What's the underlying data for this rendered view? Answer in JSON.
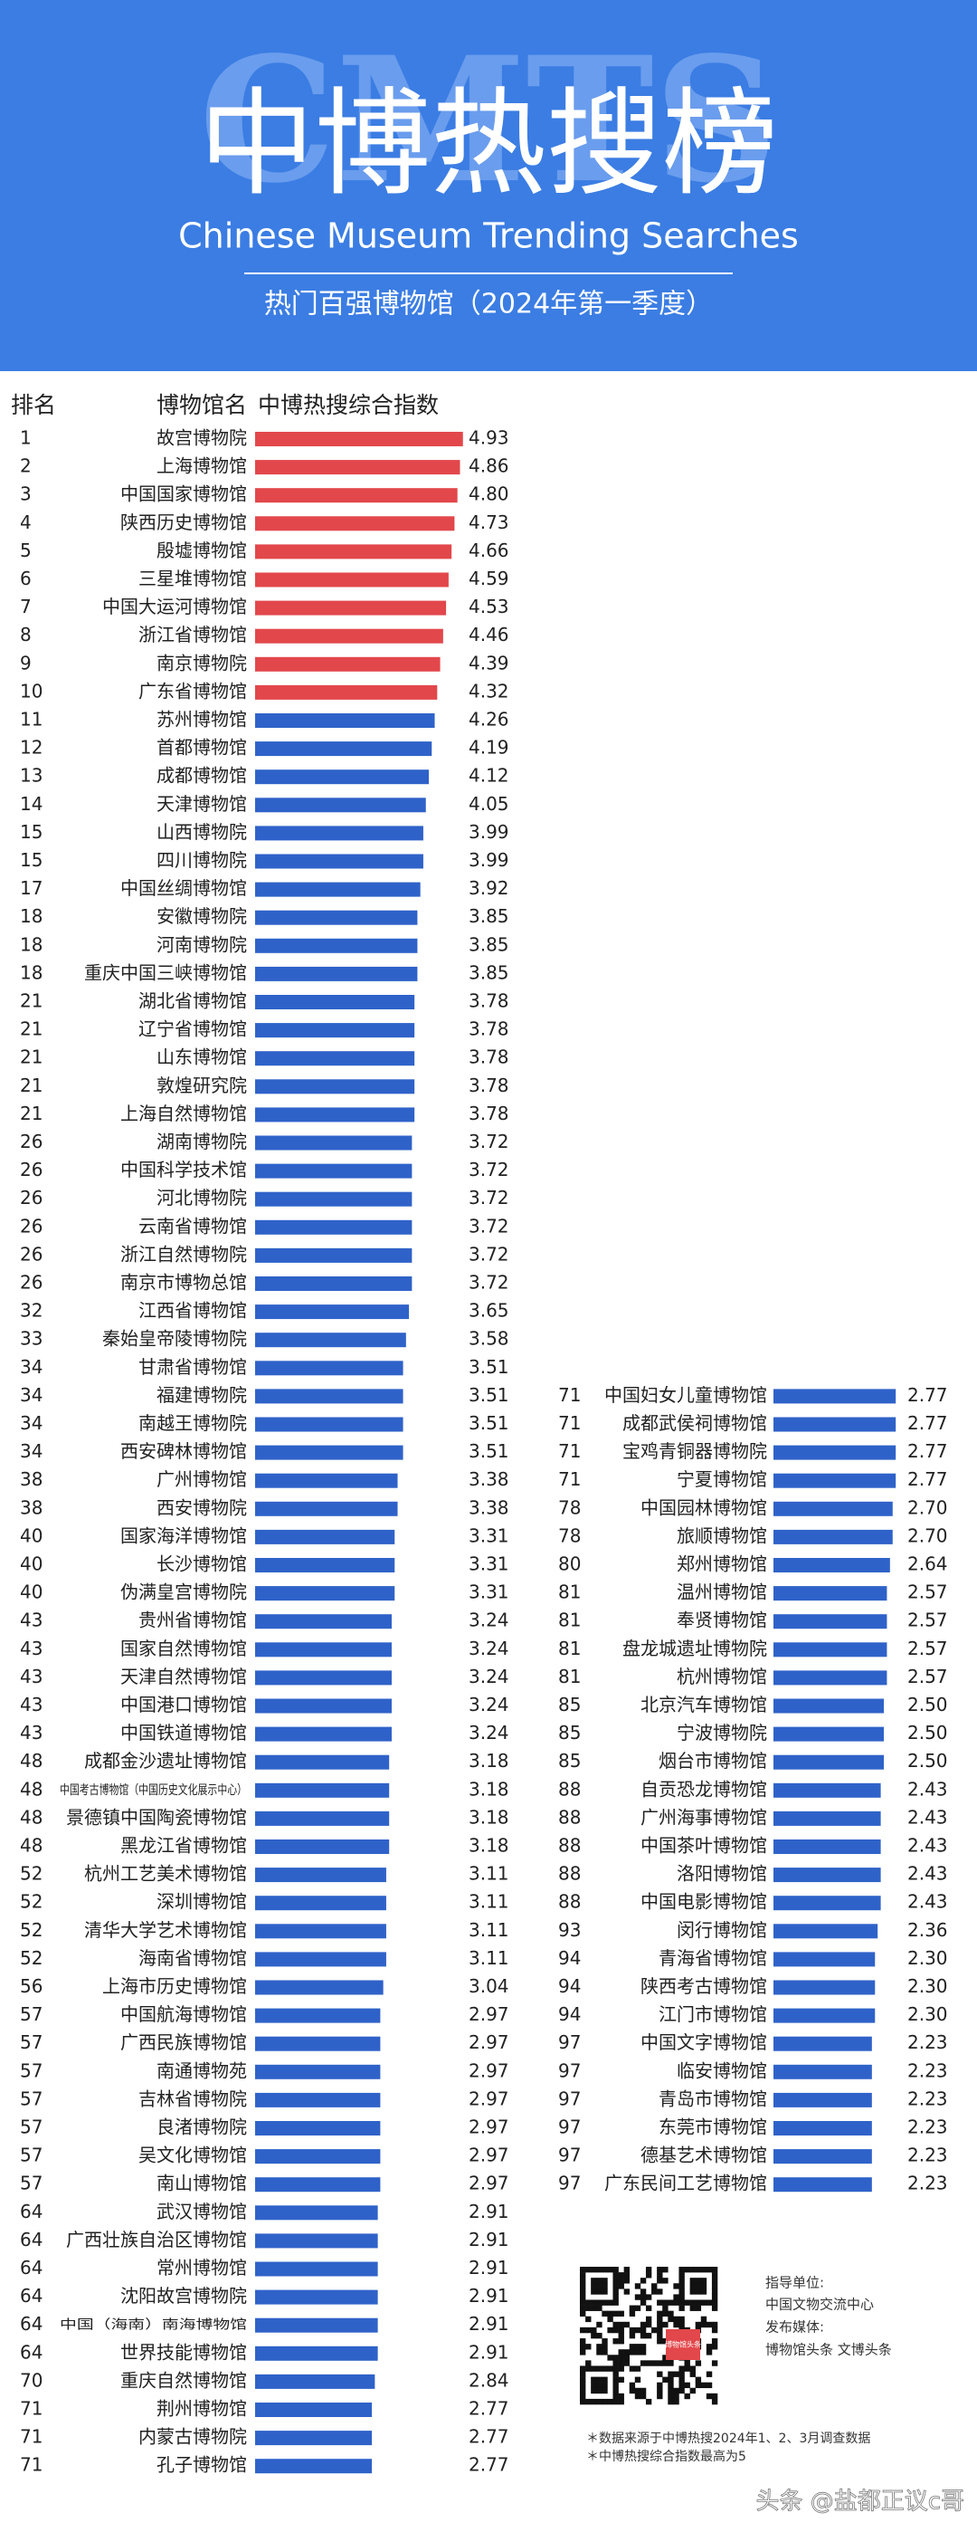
{
  "header": {
    "watermark": "CMTS",
    "title": "中博热搜榜",
    "subtitle": "Chinese Museum Trending Searches",
    "period": "热门百强博物馆（2024年第一季度）"
  },
  "column_headers": [
    "排名",
    "博物馆名",
    "中博热搜综合指数"
  ],
  "chart_data": [
    {
      "type": "bar",
      "xlim": [
        0,
        5
      ],
      "ranks": [
        1,
        2,
        3,
        4,
        5,
        6,
        7,
        8,
        9,
        10,
        11,
        12,
        13,
        14,
        15,
        15,
        17,
        18,
        18,
        18,
        21,
        21,
        21,
        21,
        21,
        26,
        26,
        26,
        26,
        26,
        26,
        32,
        33,
        34,
        34,
        34,
        34,
        38,
        38,
        40,
        40,
        40,
        43,
        43,
        43,
        43,
        43,
        48,
        48,
        48,
        48,
        52,
        52,
        52,
        52,
        56,
        57,
        57,
        57,
        57,
        57,
        57,
        57,
        64,
        64,
        64,
        64,
        64,
        64,
        70,
        71,
        71,
        71
      ],
      "categories": [
        "故宫博物院",
        "上海博物馆",
        "中国国家博物馆",
        "陕西历史博物馆",
        "殷墟博物馆",
        "三星堆博物馆",
        "中国大运河博物馆",
        "浙江省博物馆",
        "南京博物院",
        "广东省博物馆",
        "苏州博物馆",
        "首都博物馆",
        "成都博物馆",
        "天津博物馆",
        "山西博物院",
        "四川博物院",
        "中国丝绸博物馆",
        "安徽博物院",
        "河南博物院",
        "重庆中国三峡博物馆",
        "湖北省博物馆",
        "辽宁省博物馆",
        "山东博物馆",
        "敦煌研究院",
        "上海自然博物馆",
        "湖南博物院",
        "中国科学技术馆",
        "河北博物院",
        "云南省博物馆",
        "浙江自然博物院",
        "南京市博物总馆",
        "江西省博物馆",
        "秦始皇帝陵博物院",
        "甘肃省博物馆",
        "福建博物院",
        "南越王博物院",
        "西安碑林博物馆",
        "广州博物馆",
        "西安博物院",
        "国家海洋博物馆",
        "长沙博物馆",
        "伪满皇宫博物院",
        "贵州省博物馆",
        "国家自然博物馆",
        "天津自然博物馆",
        "中国港口博物馆",
        "中国铁道博物馆",
        "成都金沙遗址博物馆",
        "中国考古博物馆（中国历史文化展示中心）",
        "景德镇中国陶瓷博物馆",
        "黑龙江省博物馆",
        "杭州工艺美术博物馆",
        "深圳博物馆",
        "清华大学艺术博物馆",
        "海南省博物馆",
        "上海市历史博物馆",
        "中国航海博物馆",
        "广西民族博物馆",
        "南通博物苑",
        "吉林省博物院",
        "良渚博物院",
        "吴文化博物馆",
        "南山博物馆",
        "武汉博物馆",
        "广西壮族自治区博物馆",
        "常州博物馆",
        "沈阳故宫博物院",
        "中国（海南）南海博物馆",
        "世界技能博物馆",
        "重庆自然博物馆",
        "荆州博物馆",
        "内蒙古博物院",
        "孔子博物馆"
      ],
      "values": [
        4.93,
        4.86,
        4.8,
        4.73,
        4.66,
        4.59,
        4.53,
        4.46,
        4.39,
        4.32,
        4.26,
        4.19,
        4.12,
        4.05,
        3.99,
        3.99,
        3.92,
        3.85,
        3.85,
        3.85,
        3.78,
        3.78,
        3.78,
        3.78,
        3.78,
        3.72,
        3.72,
        3.72,
        3.72,
        3.72,
        3.72,
        3.65,
        3.58,
        3.51,
        3.51,
        3.51,
        3.51,
        3.38,
        3.38,
        3.31,
        3.31,
        3.31,
        3.24,
        3.24,
        3.24,
        3.24,
        3.24,
        3.18,
        3.18,
        3.18,
        3.18,
        3.11,
        3.11,
        3.11,
        3.11,
        3.04,
        2.97,
        2.97,
        2.97,
        2.97,
        2.97,
        2.97,
        2.97,
        2.91,
        2.91,
        2.91,
        2.91,
        2.91,
        2.91,
        2.84,
        2.77,
        2.77,
        2.77
      ],
      "value_labels": [
        "4.93",
        "4.86",
        "4.80",
        "4.73",
        "4.66",
        "4.59",
        "4.53",
        "4.46",
        "4.39",
        "4.32",
        "4.26",
        "4.19",
        "4.12",
        "4.05",
        "3.99",
        "3.99",
        "3.92",
        "3.85",
        "3.85",
        "3.85",
        "3.78",
        "3.78",
        "3.78",
        "3.78",
        "3.78",
        "3.72",
        "3.72",
        "3.72",
        "3.72",
        "3.72",
        "3.72",
        "3.65",
        "3.58",
        "3.51",
        "3.51",
        "3.51",
        "3.51",
        "3.38",
        "3.38",
        "3.31",
        "3.31",
        "3.31",
        "3.24",
        "3.24",
        "3.24",
        "3.24",
        "3.24",
        "3.18",
        "3.18",
        "3.18",
        "3.18",
        "3.11",
        "3.11",
        "3.11",
        "3.11",
        "3.04",
        "2.97",
        "2.97",
        "2.97",
        "2.97",
        "2.97",
        "2.97",
        "2.97",
        "2.91",
        "2.91",
        "2.91",
        "2.91",
        "2.91",
        "2.91",
        "2.84",
        "2.77",
        "2.77",
        "2.77"
      ],
      "colors": [
        "#e2474b",
        "#e2474b",
        "#e2474b",
        "#e2474b",
        "#e2474b",
        "#e2474b",
        "#e2474b",
        "#e2474b",
        "#e2474b",
        "#e2474b",
        "#2f62c9",
        "#2f62c9",
        "#2f62c9",
        "#2f62c9",
        "#2f62c9",
        "#2f62c9",
        "#2f62c9",
        "#2f62c9",
        "#2f62c9",
        "#2f62c9",
        "#2f62c9",
        "#2f62c9",
        "#2f62c9",
        "#2f62c9",
        "#2f62c9",
        "#2f62c9",
        "#2f62c9",
        "#2f62c9",
        "#2f62c9",
        "#2f62c9",
        "#2f62c9",
        "#2f62c9",
        "#2f62c9",
        "#2f62c9",
        "#2f62c9",
        "#2f62c9",
        "#2f62c9",
        "#2f62c9",
        "#2f62c9",
        "#2f62c9",
        "#2f62c9",
        "#2f62c9",
        "#2f62c9",
        "#2f62c9",
        "#2f62c9",
        "#2f62c9",
        "#2f62c9",
        "#2f62c9",
        "#2f62c9",
        "#2f62c9",
        "#2f62c9",
        "#2f62c9",
        "#2f62c9",
        "#2f62c9",
        "#2f62c9",
        "#2f62c9",
        "#2f62c9",
        "#2f62c9",
        "#2f62c9",
        "#2f62c9",
        "#2f62c9",
        "#2f62c9",
        "#2f62c9",
        "#2f62c9",
        "#2f62c9",
        "#2f62c9",
        "#2f62c9",
        "#2f62c9",
        "#2f62c9",
        "#2f62c9",
        "#2f62c9",
        "#2f62c9",
        "#2f62c9"
      ]
    },
    {
      "type": "bar",
      "xlim": [
        0,
        5
      ],
      "ranks": [
        71,
        71,
        71,
        71,
        78,
        78,
        80,
        81,
        81,
        81,
        81,
        85,
        85,
        85,
        88,
        88,
        88,
        88,
        88,
        93,
        94,
        94,
        94,
        97,
        97,
        97,
        97,
        97,
        97
      ],
      "categories": [
        "中国妇女儿童博物馆",
        "成都武侯祠博物馆",
        "宝鸡青铜器博物院",
        "宁夏博物馆",
        "中国园林博物馆",
        "旅顺博物馆",
        "郑州博物馆",
        "温州博物馆",
        "奉贤博物馆",
        "盘龙城遗址博物院",
        "杭州博物馆",
        "北京汽车博物馆",
        "宁波博物院",
        "烟台市博物馆",
        "自贡恐龙博物馆",
        "广州海事博物馆",
        "中国茶叶博物馆",
        "洛阳博物馆",
        "中国电影博物馆",
        "闵行博物馆",
        "青海省博物馆",
        "陕西考古博物馆",
        "江门市博物馆",
        "中国文字博物馆",
        "临安博物馆",
        "青岛市博物馆",
        "东莞市博物馆",
        "德基艺术博物馆",
        "广东民间工艺博物馆"
      ],
      "values": [
        2.77,
        2.77,
        2.77,
        2.77,
        2.7,
        2.7,
        2.64,
        2.57,
        2.57,
        2.57,
        2.57,
        2.5,
        2.5,
        2.5,
        2.43,
        2.43,
        2.43,
        2.43,
        2.43,
        2.36,
        2.3,
        2.3,
        2.3,
        2.23,
        2.23,
        2.23,
        2.23,
        2.23,
        2.23
      ],
      "value_labels": [
        "2.77",
        "2.77",
        "2.77",
        "2.77",
        "2.70",
        "2.70",
        "2.64",
        "2.57",
        "2.57",
        "2.57",
        "2.57",
        "2.50",
        "2.50",
        "2.50",
        "2.43",
        "2.43",
        "2.43",
        "2.43",
        "2.43",
        "2.36",
        "2.30",
        "2.30",
        "2.30",
        "2.23",
        "2.23",
        "2.23",
        "2.23",
        "2.23",
        "2.23"
      ],
      "colors": [
        "#2f62c9",
        "#2f62c9",
        "#2f62c9",
        "#2f62c9",
        "#2f62c9",
        "#2f62c9",
        "#2f62c9",
        "#2f62c9",
        "#2f62c9",
        "#2f62c9",
        "#2f62c9",
        "#2f62c9",
        "#2f62c9",
        "#2f62c9",
        "#2f62c9",
        "#2f62c9",
        "#2f62c9",
        "#2f62c9",
        "#2f62c9",
        "#2f62c9",
        "#2f62c9",
        "#2f62c9",
        "#2f62c9",
        "#2f62c9",
        "#2f62c9",
        "#2f62c9",
        "#2f62c9",
        "#2f62c9",
        "#2f62c9"
      ]
    }
  ],
  "footer": {
    "sponsor_label": "指导单位:",
    "sponsor": "中国文物交流中心",
    "media_label": "发布媒体:",
    "media": "博物馆头条 文博头条",
    "qr_badge": "博物馆头条",
    "notes": [
      "＊数据来源于中博热搜2024年1、2、3月调查数据",
      "＊中博热搜综合指数最高为5"
    ],
    "watermark": "头条 @盐都正议c哥"
  }
}
